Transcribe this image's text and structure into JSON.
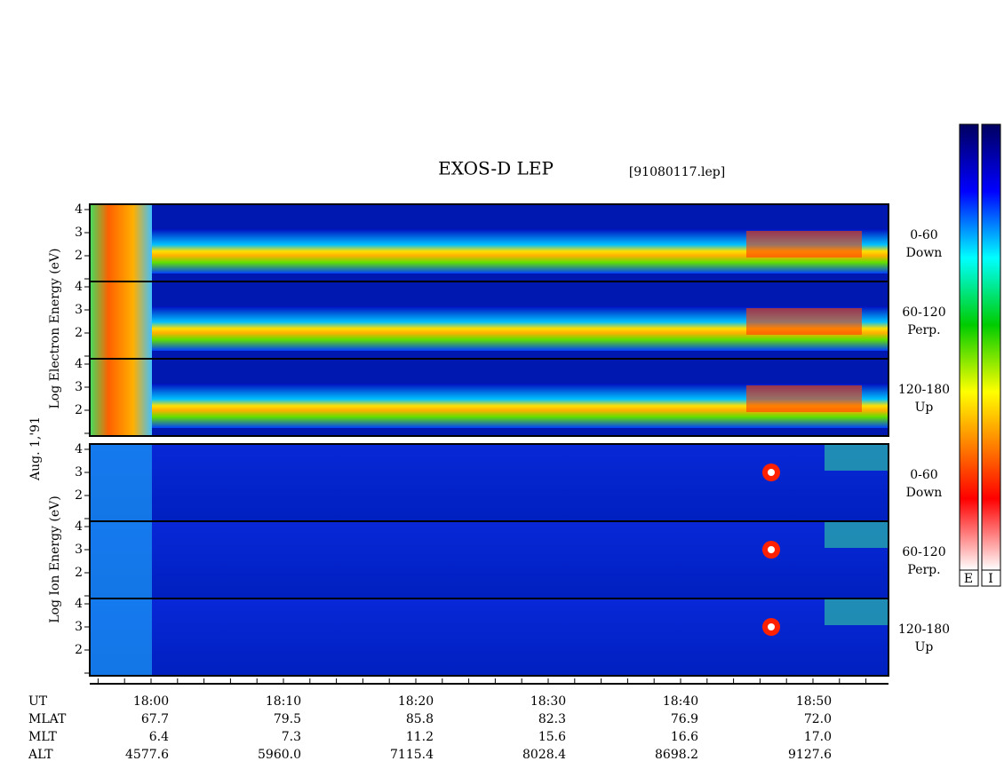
{
  "header": {
    "title": "EXOS-D LEP",
    "file": "[91080117.lep]"
  },
  "axis": {
    "date": "Aug. 1,'91",
    "electron_label": "Log Electron Energy (eV)",
    "ion_label": "Log Ion Energy (eV)",
    "yticks": [
      4,
      3,
      2
    ]
  },
  "panels": [
    {
      "lines": [
        "0-60",
        "Down"
      ]
    },
    {
      "lines": [
        "60-120",
        "Perp."
      ]
    },
    {
      "lines": [
        "120-180",
        "Up"
      ]
    },
    {
      "lines": [
        "0-60",
        "Down"
      ]
    },
    {
      "lines": [
        "60-120",
        "Perp."
      ]
    },
    {
      "lines": [
        "120-180",
        "Up"
      ]
    }
  ],
  "footer": {
    "rows": [
      {
        "label": "UT",
        "values": [
          "18:00",
          "18:10",
          "18:20",
          "18:30",
          "18:40",
          "18:50"
        ]
      },
      {
        "label": "MLAT",
        "values": [
          "67.7",
          "79.5",
          "85.8",
          "82.3",
          "76.9",
          "72.0"
        ]
      },
      {
        "label": "MLT",
        "values": [
          "6.4",
          "7.3",
          "11.2",
          "15.6",
          "16.6",
          "17.0"
        ]
      },
      {
        "label": "ALT",
        "values": [
          "4577.6",
          "5960.0",
          "7115.4",
          "8028.4",
          "8698.2",
          "9127.6"
        ]
      }
    ]
  },
  "colorbar": {
    "labels": [
      "E",
      "I"
    ]
  }
}
